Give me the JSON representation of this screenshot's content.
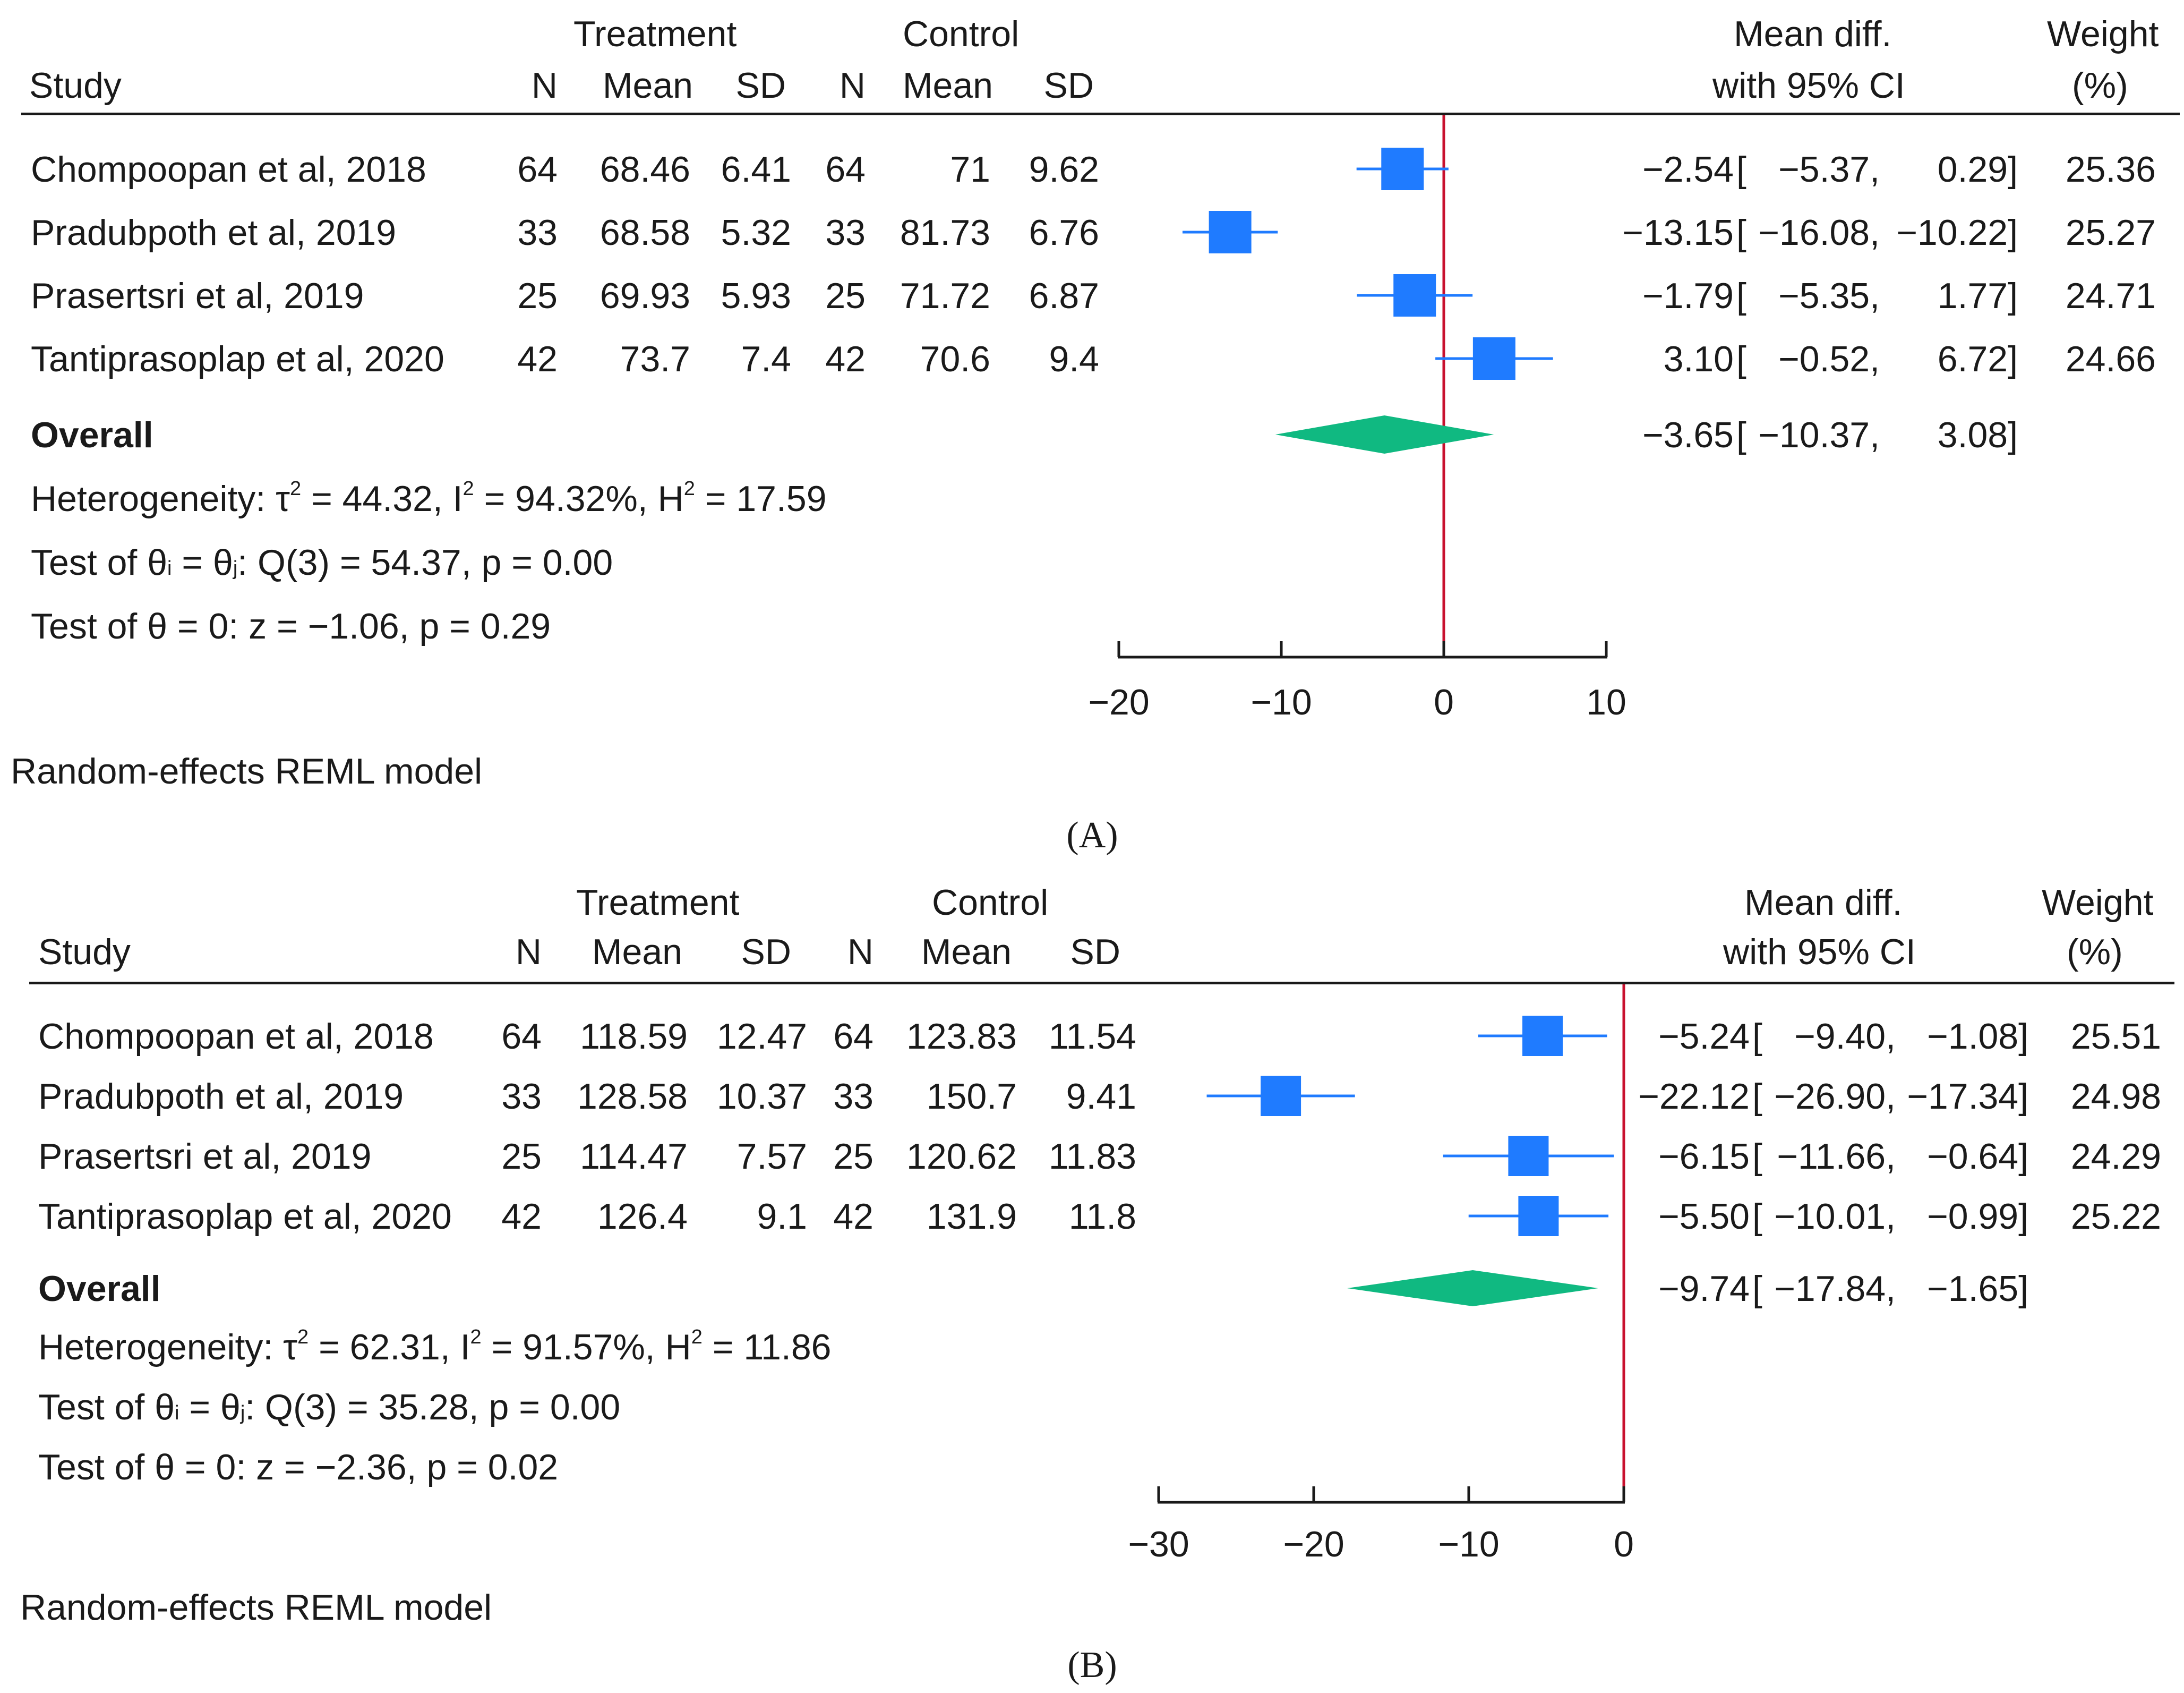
{
  "panels": [
    {
      "label": "A",
      "headers": {
        "study": "Study",
        "treatment_group": "Treatment",
        "control_group": "Control",
        "n": "N",
        "mean": "Mean",
        "sd": "SD",
        "effect_line1": "Mean diff.",
        "effect_line2": "with 95% CI",
        "weight_line1": "Weight",
        "weight_line2": "(%)"
      },
      "studies": [
        {
          "name": "Chompoopan et al, 2018",
          "tn": "64",
          "tmean": "68.46",
          "tsd": "6.41",
          "cn": "64",
          "cmean": "71",
          "csd": "9.62",
          "md": "−2.54",
          "lo": "−5.37,",
          "hi": "0.29]",
          "weight": "25.36"
        },
        {
          "name": "Pradubpoth et al, 2019",
          "tn": "33",
          "tmean": "68.58",
          "tsd": "5.32",
          "cn": "33",
          "cmean": "81.73",
          "csd": "6.76",
          "md": "−13.15",
          "lo": "−16.08,",
          "hi": "−10.22]",
          "weight": "25.27"
        },
        {
          "name": "Prasertsri et al, 2019",
          "tn": "25",
          "tmean": "69.93",
          "tsd": "5.93",
          "cn": "25",
          "cmean": "71.72",
          "csd": "6.87",
          "md": "−1.79",
          "lo": "−5.35,",
          "hi": "1.77]",
          "weight": "24.71"
        },
        {
          "name": "Tantiprasoplap et al, 2020",
          "tn": "42",
          "tmean": "73.7",
          "tsd": "7.4",
          "cn": "42",
          "cmean": "70.6",
          "csd": "9.4",
          "md": "3.10",
          "lo": "−0.52,",
          "hi": "6.72]",
          "weight": "24.66"
        }
      ],
      "overall": {
        "label": "Overall",
        "md": "−3.65",
        "lo": "−10.37,",
        "hi": "3.08]"
      },
      "heterogeneity": {
        "prefix": "Heterogeneity: τ",
        "tau2": "= 44.32, I",
        "i2": "= 94.32%, H",
        "h2": "= 17.59"
      },
      "test_q": {
        "prefix": "Test of θ",
        "eq": " = θ",
        "rest": ": Q(3) = 54.37, p = 0.00",
        "sub_i": "i",
        "sub_j": "j"
      },
      "test_z": "Test of θ = 0: z = −1.06, p = 0.29",
      "model": "Random-effects REML model",
      "caption": "(A)"
    },
    {
      "label": "B",
      "headers": {
        "study": "Study",
        "treatment_group": "Treatment",
        "control_group": "Control",
        "n": "N",
        "mean": "Mean",
        "sd": "SD",
        "effect_line1": "Mean diff.",
        "effect_line2": "with 95% CI",
        "weight_line1": "Weight",
        "weight_line2": "(%)"
      },
      "studies": [
        {
          "name": "Chompoopan et al, 2018",
          "tn": "64",
          "tmean": "118.59",
          "tsd": "12.47",
          "cn": "64",
          "cmean": "123.83",
          "csd": "11.54",
          "md": "−5.24",
          "lo": "−9.40,",
          "hi": "−1.08]",
          "weight": "25.51"
        },
        {
          "name": "Pradubpoth et al, 2019",
          "tn": "33",
          "tmean": "128.58",
          "tsd": "10.37",
          "cn": "33",
          "cmean": "150.7",
          "csd": "9.41",
          "md": "−22.12",
          "lo": "−26.90,",
          "hi": "−17.34]",
          "weight": "24.98"
        },
        {
          "name": "Prasertsri et al, 2019",
          "tn": "25",
          "tmean": "114.47",
          "tsd": "7.57",
          "cn": "25",
          "cmean": "120.62",
          "csd": "11.83",
          "md": "−6.15",
          "lo": "−11.66,",
          "hi": "−0.64]",
          "weight": "24.29"
        },
        {
          "name": "Tantiprasoplap et al, 2020",
          "tn": "42",
          "tmean": "126.4",
          "tsd": "9.1",
          "cn": "42",
          "cmean": "131.9",
          "csd": "11.8",
          "md": "−5.50",
          "lo": "−10.01,",
          "hi": "−0.99]",
          "weight": "25.22"
        }
      ],
      "overall": {
        "label": "Overall",
        "md": "−9.74",
        "lo": "−17.84,",
        "hi": "−1.65]"
      },
      "heterogeneity": {
        "prefix": "Heterogeneity: τ",
        "tau2": "= 62.31, I",
        "i2": "= 91.57%, H",
        "h2": "= 11.86"
      },
      "test_q": {
        "prefix": "Test of θ",
        "eq": " = θ",
        "rest": ": Q(3) = 35.28, p = 0.00",
        "sub_i": "i",
        "sub_j": "j"
      },
      "test_z": "Test of θ = 0: z = −2.36, p = 0.02",
      "model": "Random-effects REML model",
      "caption": "(B)"
    }
  ],
  "colors": {
    "square": "#1f7bff",
    "ci_line": "#1f7bff",
    "diamond": "#10b981",
    "null_line": "#c8102e",
    "text": "#1a1a1a"
  },
  "chart_data": [
    {
      "type": "forest",
      "title": "",
      "xlabel": "",
      "xlim": [
        -20,
        10
      ],
      "ticks": [
        -20,
        -10,
        0,
        10
      ],
      "tick_labels": [
        "−20",
        "−10",
        "0",
        "10"
      ],
      "null_value": 0,
      "studies": [
        {
          "name": "Chompoopan et al, 2018",
          "estimate": -2.54,
          "lower": -5.37,
          "upper": 0.29,
          "weight": 25.36
        },
        {
          "name": "Pradubpoth et al, 2019",
          "estimate": -13.15,
          "lower": -16.08,
          "upper": -10.22,
          "weight": 25.27
        },
        {
          "name": "Prasertsri et al, 2019",
          "estimate": -1.79,
          "lower": -5.35,
          "upper": 1.77,
          "weight": 24.71
        },
        {
          "name": "Tantiprasoplap et al, 2020",
          "estimate": 3.1,
          "lower": -0.52,
          "upper": 6.72,
          "weight": 24.66
        }
      ],
      "overall": {
        "estimate": -3.65,
        "lower": -10.37,
        "upper": 3.08
      }
    },
    {
      "type": "forest",
      "title": "",
      "xlabel": "",
      "xlim": [
        -30,
        0
      ],
      "ticks": [
        -30,
        -20,
        -10,
        0
      ],
      "tick_labels": [
        "−30",
        "−20",
        "−10",
        "0"
      ],
      "null_value": 0,
      "studies": [
        {
          "name": "Chompoopan et al, 2018",
          "estimate": -5.24,
          "lower": -9.4,
          "upper": -1.08,
          "weight": 25.51
        },
        {
          "name": "Pradubpoth et al, 2019",
          "estimate": -22.12,
          "lower": -26.9,
          "upper": -17.34,
          "weight": 24.98
        },
        {
          "name": "Prasertsri et al, 2019",
          "estimate": -6.15,
          "lower": -11.66,
          "upper": -0.64,
          "weight": 24.29
        },
        {
          "name": "Tantiprasoplap et al, 2020",
          "estimate": -5.5,
          "lower": -10.01,
          "upper": -0.99,
          "weight": 25.22
        }
      ],
      "overall": {
        "estimate": -9.74,
        "lower": -17.84,
        "upper": -1.65
      }
    }
  ]
}
